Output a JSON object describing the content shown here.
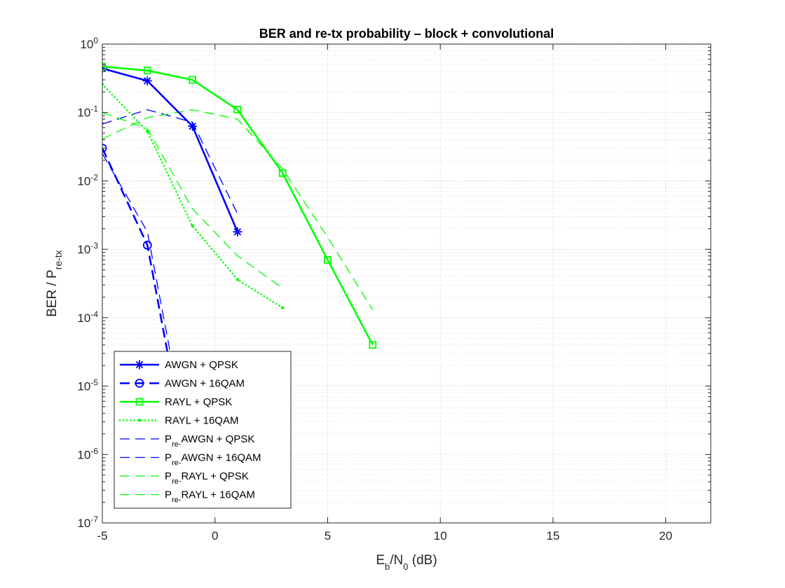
{
  "chart_data": {
    "type": "line",
    "title": "BER and re-tx probability – block + convolutional",
    "xlabel": {
      "main": "E",
      "sub1": "b",
      "mid": "/N",
      "sub2": "0",
      "tail": "  (dB)"
    },
    "ylabel": {
      "main": "BER / P",
      "sub": "re-tx"
    },
    "xlim": [
      -5,
      22
    ],
    "ylim": [
      1e-07,
      1
    ],
    "yscale": "log",
    "grid": true,
    "x_ticks": [
      -5,
      0,
      5,
      10,
      15,
      20
    ],
    "x_tick_labels": [
      "-5",
      "0",
      "5",
      "10",
      "15",
      "20"
    ],
    "y_ticks": [
      {
        "base": "10",
        "exp": "0",
        "value": 1
      },
      {
        "base": "10",
        "exp": "-1",
        "value": 0.1
      },
      {
        "base": "10",
        "exp": "-2",
        "value": 0.01
      },
      {
        "base": "10",
        "exp": "-3",
        "value": 0.001
      },
      {
        "base": "10",
        "exp": "-4",
        "value": 0.0001
      },
      {
        "base": "10",
        "exp": "-5",
        "value": 1e-05
      },
      {
        "base": "10",
        "exp": "-6",
        "value": 1e-06
      },
      {
        "base": "10",
        "exp": "-7",
        "value": 1e-07
      }
    ],
    "legend_position": "bottom-left",
    "colors": {
      "blue": "#0000ff",
      "green": "#00ff00"
    },
    "series": [
      {
        "legend": {
          "main": "AWGN  +  QPSK"
        },
        "color": "#0000ff",
        "style": "solid",
        "width": "thick",
        "marker": "asterisk",
        "x": [
          -5,
          -3,
          -1,
          1
        ],
        "y": [
          0.44,
          0.29,
          0.063,
          0.0018
        ]
      },
      {
        "legend": {
          "main": "AWGN  + 16QAM"
        },
        "color": "#0000ff",
        "style": "dashed",
        "width": "thick",
        "marker": "circle",
        "x": [
          -5,
          -3,
          -1
        ],
        "y": [
          0.03,
          0.00115,
          3.5e-07
        ]
      },
      {
        "legend": {
          "main": "RAYL  +  QPSK"
        },
        "color": "#00ff00",
        "style": "solid",
        "width": "thick",
        "marker": "square",
        "x": [
          -5,
          -3,
          -1,
          1,
          3,
          5,
          7
        ],
        "y": [
          0.47,
          0.41,
          0.3,
          0.11,
          0.013,
          0.0007,
          4e-05
        ]
      },
      {
        "legend": {
          "main": "RAYL  + 16QAM"
        },
        "color": "#00ff00",
        "style": "dotted",
        "width": "thick",
        "marker": "point",
        "x": [
          -5,
          -3,
          -1,
          1,
          3
        ],
        "y": [
          0.26,
          0.053,
          0.0022,
          0.00036,
          0.00014
        ]
      },
      {
        "legend": {
          "main": "P",
          "sub": "re-",
          "tail": "AWGN  +  QPSK"
        },
        "color": "#0000ff",
        "style": "dashed",
        "width": "thin",
        "marker": "none",
        "x": [
          -5,
          -3,
          -1,
          1
        ],
        "y": [
          0.068,
          0.11,
          0.072,
          0.0033
        ]
      },
      {
        "legend": {
          "main": "P",
          "sub": "re-",
          "tail": "AWGN  + 16QAM"
        },
        "color": "#0000ff",
        "style": "dashed",
        "width": "thin",
        "marker": "none",
        "x": [
          -5,
          -3,
          -1
        ],
        "y": [
          0.025,
          0.0018,
          6e-07
        ]
      },
      {
        "legend": {
          "main": "P",
          "sub": "re-",
          "tail": "RAYL  +  QPSK"
        },
        "color": "#00ff00",
        "style": "dashed",
        "width": "thin",
        "marker": "none",
        "x": [
          -5,
          -3,
          -1,
          1,
          3,
          5,
          7
        ],
        "y": [
          0.041,
          0.084,
          0.11,
          0.08,
          0.015,
          0.0015,
          0.00013
        ]
      },
      {
        "legend": {
          "main": "P",
          "sub": "re-",
          "tail": "RAYL  + 16QAM"
        },
        "color": "#00ff00",
        "style": "dashed",
        "width": "thin",
        "marker": "none",
        "x": [
          -5,
          -3,
          -1,
          1,
          3
        ],
        "y": [
          0.1,
          0.058,
          0.0039,
          0.0008,
          0.00027
        ]
      }
    ]
  }
}
